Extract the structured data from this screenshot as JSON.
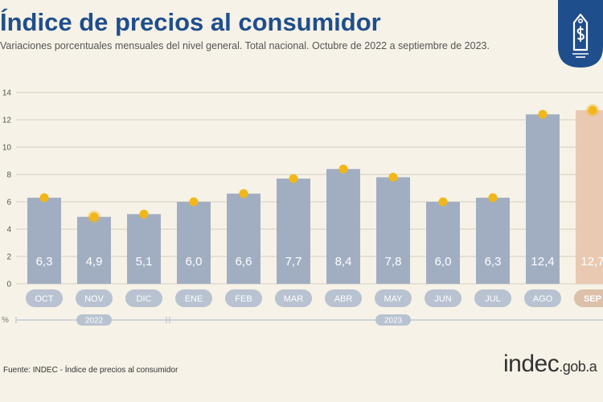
{
  "colors": {
    "title": "#1f4e8c",
    "bar": "#a1aec2",
    "bar_highlight": "#eac9b2",
    "dot": "#f1b719",
    "pill": "#b8c2d1",
    "pill_highlight": "#dcc0aa",
    "badge": "#1f4e8c"
  },
  "badge": {
    "icon": "price-tag-dollar-icon"
  },
  "source": "Fuente: INDEC - Índice de precios al consumidor",
  "logo": {
    "main": "indec",
    "suffix": ".gob.a"
  },
  "chart_data": {
    "type": "bar",
    "title": "Índice de precios al consumidor",
    "subtitle": "Variaciones porcentuales mensuales del nivel general. Total nacional. Octubre de 2022 a septiembre de 2023.",
    "categories": [
      "OCT",
      "NOV",
      "DIC",
      "ENE",
      "FEB",
      "MAR",
      "ABR",
      "MAY",
      "JUN",
      "JUL",
      "AGO",
      "SEP"
    ],
    "values": [
      6.3,
      4.9,
      5.1,
      6.0,
      6.6,
      7.7,
      8.4,
      7.8,
      6.0,
      6.3,
      12.4,
      12.7
    ],
    "value_labels": [
      "6,3",
      "4,9",
      "5,1",
      "6,0",
      "6,6",
      "7,7",
      "8,4",
      "7,8",
      "6,0",
      "6,3",
      "12,4",
      "12,7"
    ],
    "highlight": [
      "SEP"
    ],
    "ringed_dots": [
      "NOV",
      "SEP"
    ],
    "ylim": [
      0,
      14
    ],
    "yticks": [
      0,
      2,
      4,
      6,
      8,
      10,
      12,
      14
    ],
    "ylabel": "%",
    "grid": true,
    "year_groups": [
      {
        "label": "2022",
        "categories": [
          "OCT",
          "NOV",
          "DIC"
        ]
      },
      {
        "label": "2023",
        "categories": [
          "ENE",
          "FEB",
          "MAR",
          "ABR",
          "MAY",
          "JUN",
          "JUL",
          "AGO",
          "SEP"
        ]
      }
    ]
  }
}
